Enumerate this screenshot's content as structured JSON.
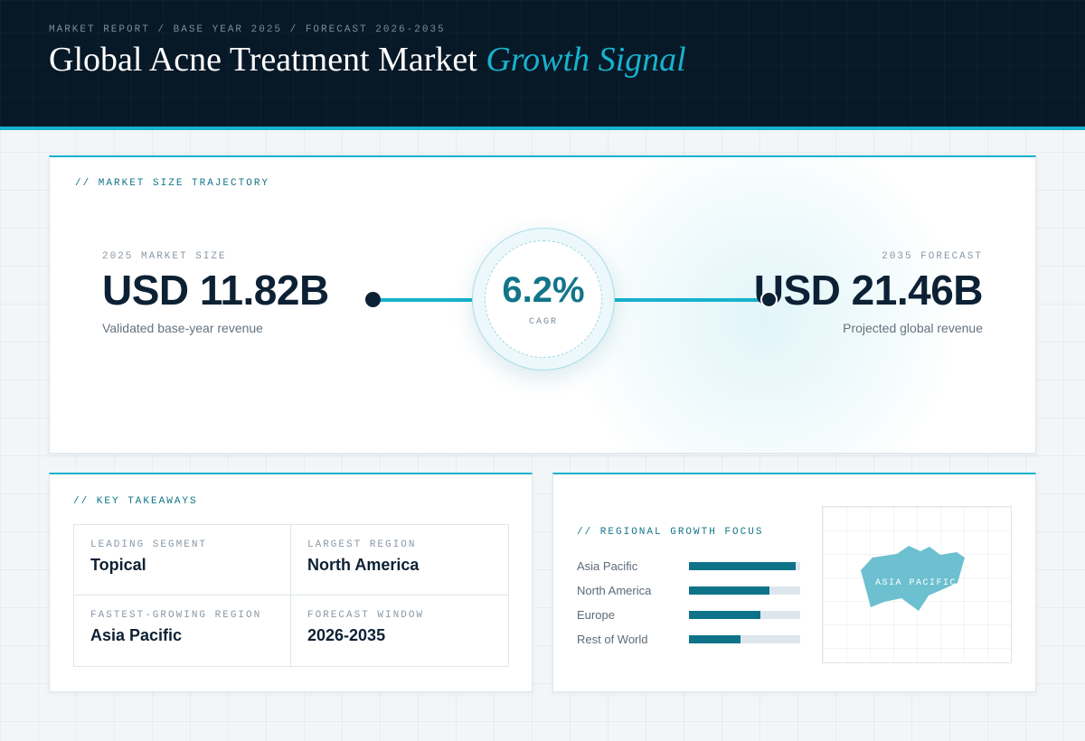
{
  "header": {
    "breadcrumb": "MARKET REPORT / BASE YEAR 2025 / FORECAST 2026-2035",
    "title_main": "Global Acne Treatment Market",
    "title_accent": "Growth Signal"
  },
  "trajectory": {
    "section_label": "// MARKET SIZE TRAJECTORY",
    "start": {
      "kicker": "2025 MARKET SIZE",
      "value": "USD 11.82B",
      "caption": "Validated base-year revenue"
    },
    "end": {
      "kicker": "2035 FORECAST",
      "value": "USD 21.46B",
      "caption": "Projected global revenue"
    },
    "cagr": {
      "value": "6.2%",
      "label": "CAGR"
    }
  },
  "takeaways": {
    "section_label": "// KEY TAKEAWAYS",
    "items": [
      {
        "kicker": "LEADING SEGMENT",
        "value": "Topical"
      },
      {
        "kicker": "LARGEST REGION",
        "value": "North America"
      },
      {
        "kicker": "FASTEST-GROWING REGION",
        "value": "Asia Pacific"
      },
      {
        "kicker": "FORECAST WINDOW",
        "value": "2026-2035"
      }
    ]
  },
  "regional": {
    "section_label": "// REGIONAL GROWTH FOCUS",
    "bars": [
      {
        "label": "Asia Pacific",
        "fill_pct": 96
      },
      {
        "label": "North America",
        "fill_pct": 72
      },
      {
        "label": "Europe",
        "fill_pct": 64
      },
      {
        "label": "Rest of World",
        "fill_pct": 46
      }
    ],
    "map_label": "ASIA PACIFIC",
    "map_icon": "asia-pacific-map-icon"
  },
  "colors": {
    "accent": "#17b2cc",
    "accent_dark": "#12758a",
    "navy": "#071827",
    "bar_fill": "#0e7389",
    "map_fill": "#6cc0d0"
  }
}
